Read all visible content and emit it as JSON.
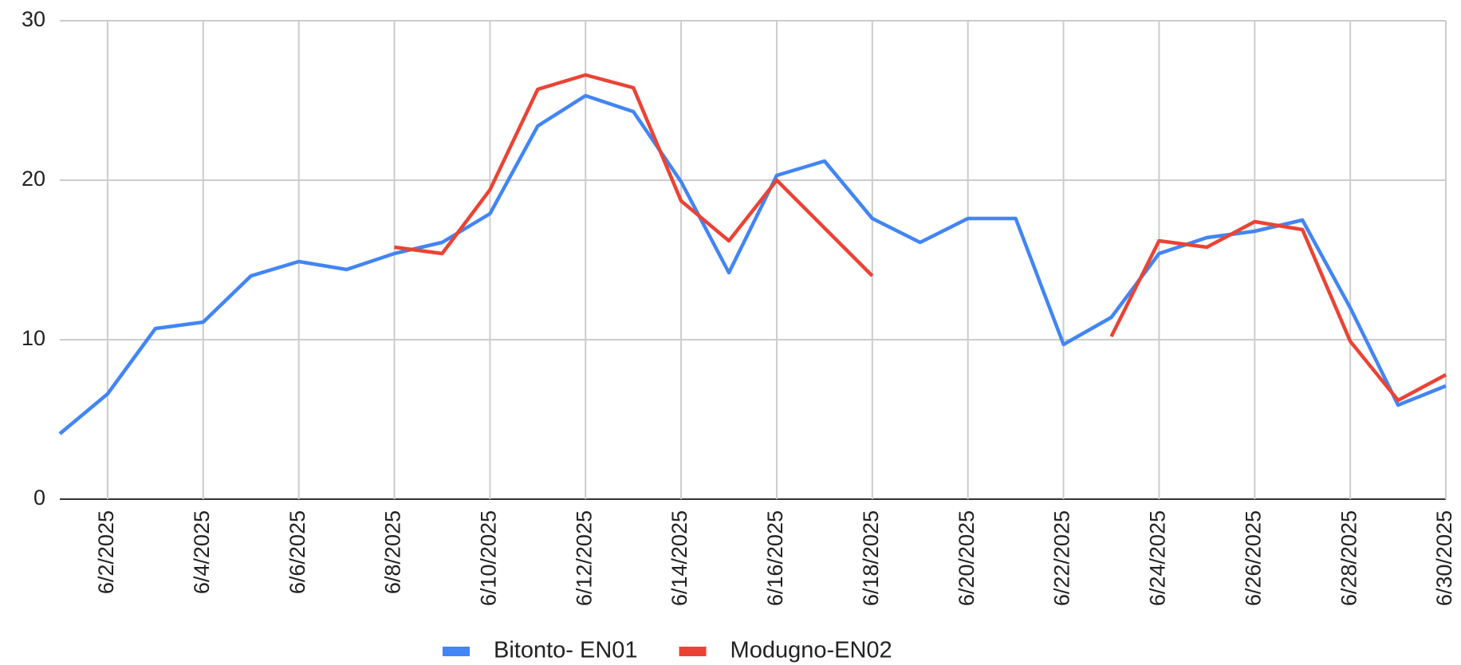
{
  "chart_data": {
    "type": "line",
    "categories": [
      null,
      "6/2/2025",
      null,
      "6/4/2025",
      null,
      "6/6/2025",
      null,
      "6/8/2025",
      null,
      "6/10/2025",
      null,
      "6/12/2025",
      null,
      "6/14/2025",
      null,
      "6/16/2025",
      null,
      "6/18/2025",
      null,
      "6/20/2025",
      null,
      "6/22/2025",
      null,
      "6/24/2025",
      null,
      "6/26/2025",
      null,
      "6/28/2025",
      null,
      "6/30/2025"
    ],
    "series": [
      {
        "name": "Bitonto- EN01",
        "color": "#4285f4",
        "values": [
          4.1,
          6.6,
          10.7,
          11.1,
          14.0,
          14.9,
          14.4,
          15.4,
          16.1,
          17.9,
          23.4,
          25.3,
          24.3,
          19.9,
          14.2,
          20.3,
          21.2,
          17.6,
          16.1,
          17.6,
          17.6,
          9.7,
          11.4,
          15.4,
          16.4,
          16.8,
          17.5,
          12.0,
          5.9,
          7.1
        ]
      },
      {
        "name": "Modugno-EN02",
        "color": "#ea4335",
        "values": [
          null,
          null,
          null,
          null,
          null,
          null,
          null,
          15.8,
          15.4,
          19.4,
          25.7,
          26.6,
          25.8,
          18.7,
          16.2,
          20.0,
          17.0,
          14.0,
          null,
          null,
          null,
          null,
          10.2,
          16.2,
          15.8,
          17.4,
          16.9,
          9.9,
          6.2,
          7.8
        ]
      }
    ],
    "ylim": [
      0,
      30
    ],
    "yticks": [
      0,
      10,
      20,
      30
    ],
    "grid": true,
    "legend": "bottom"
  }
}
